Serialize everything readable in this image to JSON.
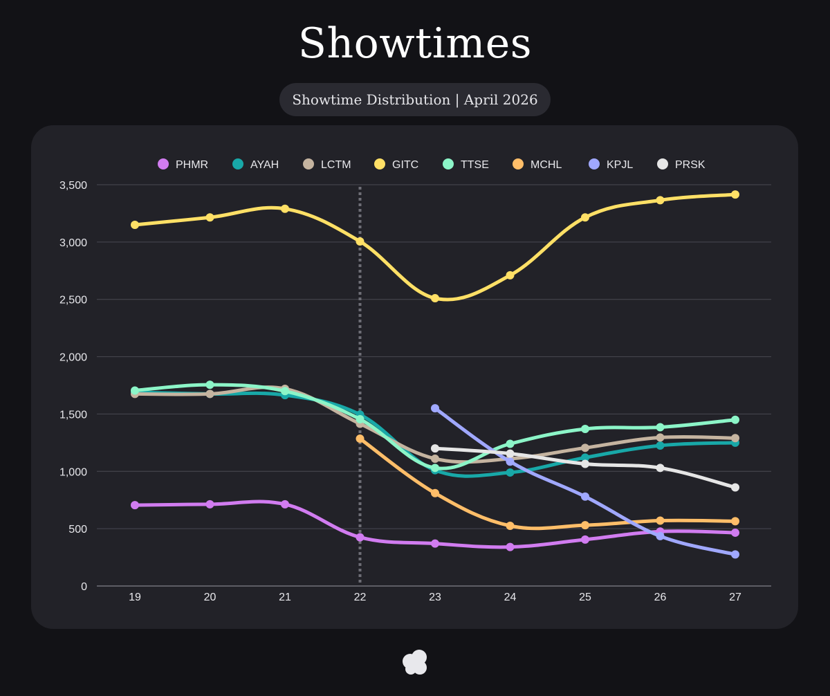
{
  "header": {
    "title": "Showtimes",
    "subtitle": "Showtime Distribution | April 2026"
  },
  "logo": {
    "icon": "cloud-cluster-logo-icon",
    "color": "#e8e8ec"
  },
  "chart_data": {
    "type": "line",
    "x": [
      19,
      20,
      21,
      22,
      23,
      24,
      25,
      26,
      27
    ],
    "ylim": [
      0,
      3500
    ],
    "yticks": [
      0,
      500,
      1000,
      1500,
      2000,
      2500,
      3000,
      3500
    ],
    "ytick_labels": [
      "0",
      "500",
      "1,000",
      "1,500",
      "2,000",
      "2,500",
      "3,000",
      "3,500"
    ],
    "grid": true,
    "legend_position": "top",
    "reference_line": {
      "x": 22,
      "style": "dotted"
    },
    "series": [
      {
        "name": "PHMR",
        "color": "#d17cf0",
        "values": [
          705,
          713,
          713,
          425,
          370,
          340,
          405,
          475,
          465
        ]
      },
      {
        "name": "AYAH",
        "color": "#18a8a8",
        "values": [
          1690,
          1675,
          1665,
          1495,
          1010,
          990,
          1120,
          1225,
          1250
        ]
      },
      {
        "name": "LCTM",
        "color": "#c5b4a0",
        "values": [
          1675,
          1675,
          1720,
          1415,
          1110,
          1110,
          1205,
          1295,
          1290
        ]
      },
      {
        "name": "GITC",
        "color": "#ffe066",
        "values": [
          3150,
          3215,
          3290,
          3005,
          2510,
          2710,
          3215,
          3365,
          3415
        ]
      },
      {
        "name": "TTSE",
        "color": "#8cf5c8",
        "values": [
          1705,
          1755,
          1700,
          1455,
          1030,
          1240,
          1370,
          1385,
          1450
        ]
      },
      {
        "name": "MCHL",
        "color": "#ffbe69",
        "values": [
          null,
          null,
          null,
          1285,
          810,
          525,
          530,
          570,
          565
        ]
      },
      {
        "name": "KPJL",
        "color": "#a0a8ff",
        "values": [
          null,
          null,
          null,
          null,
          1550,
          1085,
          780,
          435,
          275
        ]
      },
      {
        "name": "PRSK",
        "color": "#e6e6e6",
        "values": [
          null,
          null,
          null,
          null,
          1200,
          1155,
          1065,
          1030,
          860
        ]
      }
    ]
  }
}
